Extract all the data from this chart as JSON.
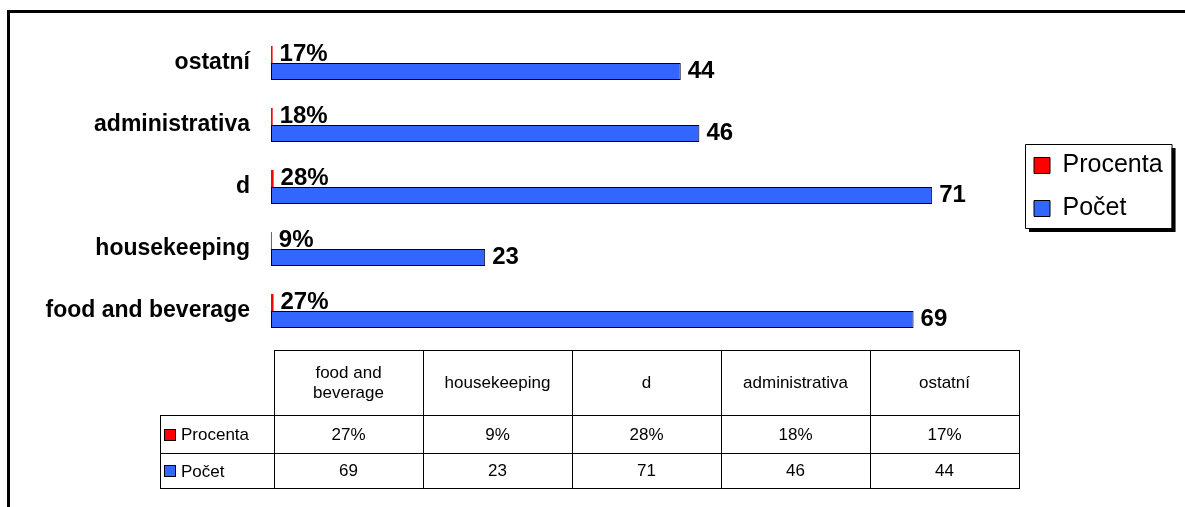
{
  "chart_data": {
    "type": "bar",
    "orientation": "horizontal",
    "categories": [
      "ostatní",
      "administrativa",
      "d",
      "housekeeping",
      "food and beverage"
    ],
    "series": [
      {
        "name": "Procenta",
        "color": "#ff0000",
        "values": [
          0.17,
          0.18,
          0.28,
          0.09,
          0.27
        ],
        "value_labels": [
          "17%",
          "18%",
          "28%",
          "9%",
          "27%"
        ]
      },
      {
        "name": "Počet",
        "color": "#3366ff",
        "values": [
          44,
          46,
          71,
          23,
          69
        ],
        "value_labels": [
          "44",
          "46",
          "71",
          "23",
          "69"
        ]
      }
    ],
    "legend": "right"
  }
}
